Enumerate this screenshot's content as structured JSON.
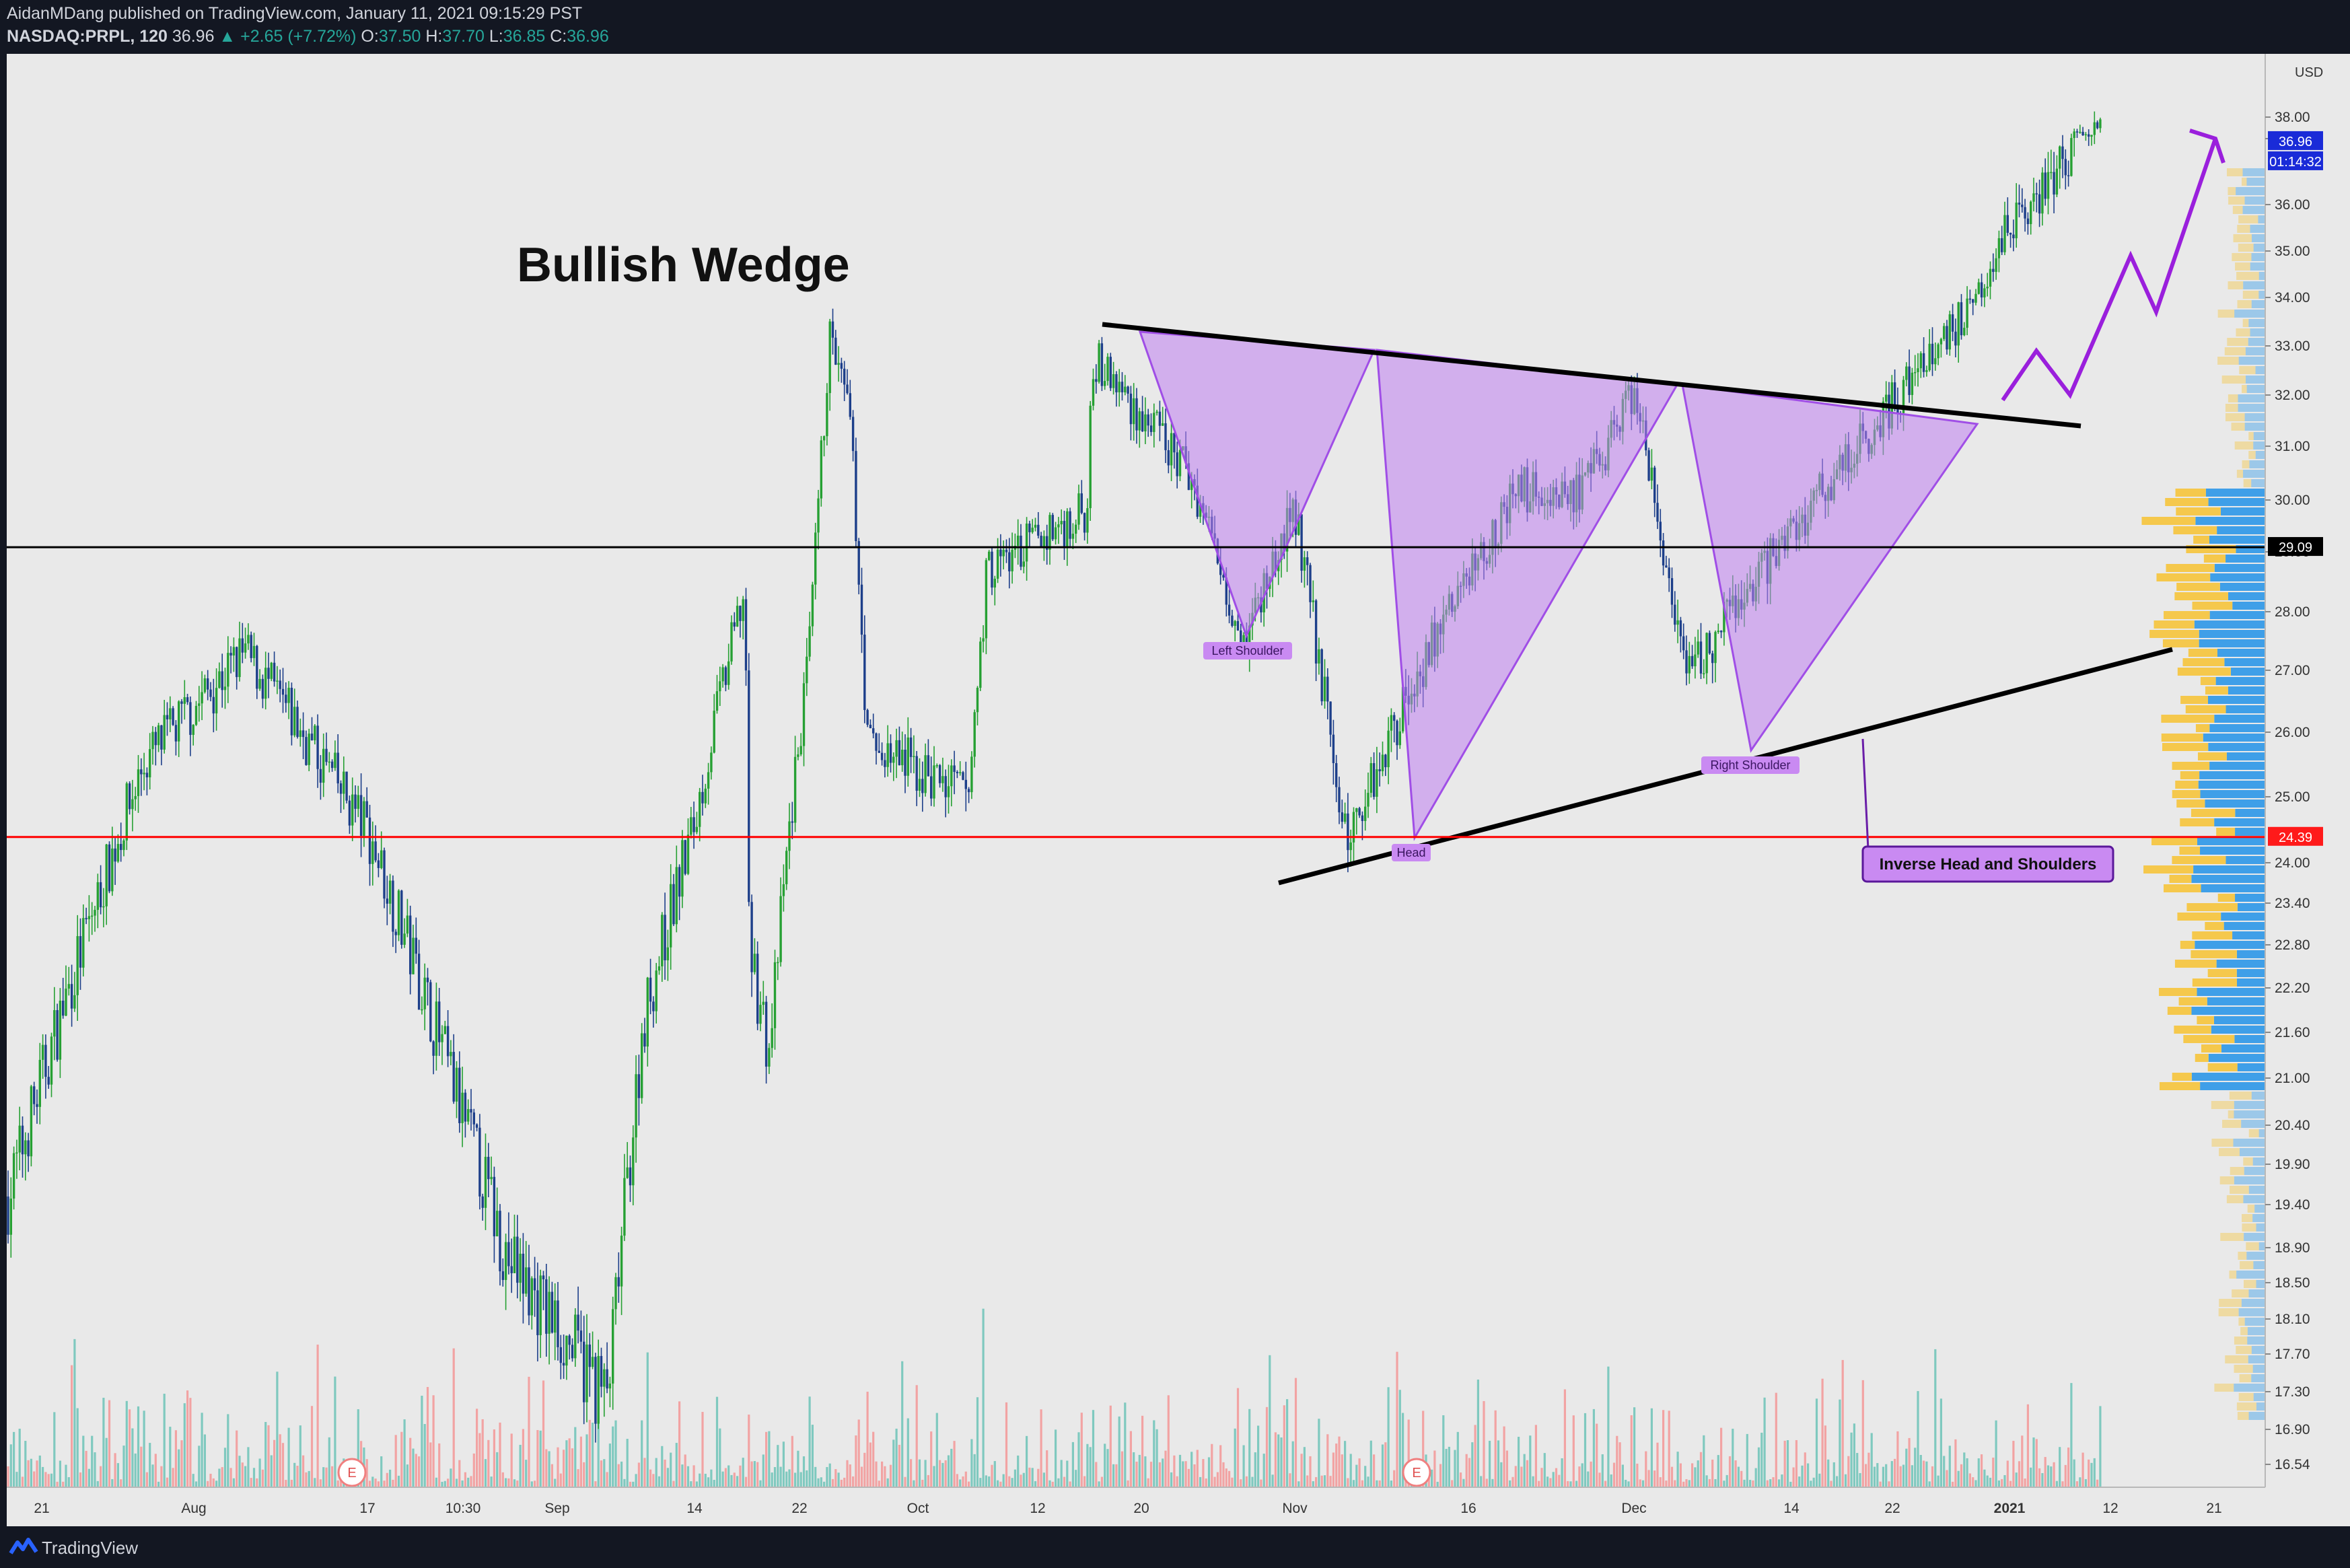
{
  "header": {
    "publisher_line": "AidanMDang published on TradingView.com, January 11, 2021 09:15:29 PST",
    "symbol": "NASDAQ:PRPL, 120",
    "last": "36.96",
    "change": "+2.65 (+7.72%)",
    "o_label": "O:",
    "o_value": "37.50",
    "h_label": "H:",
    "h_value": "37.70",
    "l_label": "L:",
    "l_value": "36.85",
    "c_label": "C:",
    "c_value": "36.96"
  },
  "footer": {
    "brand": "TradingView"
  },
  "colors": {
    "plot_bg": "#e9e9e9",
    "up_candle": "#26a033",
    "down_candle": "#1d3f8a",
    "pattern_fill": "#c080f0",
    "arrow": "#9a1fdc",
    "support_line": "#ff0000",
    "volume_up": "#7fc9bf",
    "volume_down": "#f2a3a3",
    "vp_blue": "#3f9fe8",
    "vp_yellow": "#f5c84c"
  },
  "chart_data": {
    "type": "candlestick",
    "title": "Bullish Wedge",
    "currency_label": "USD",
    "x_ticks": [
      "21",
      "Aug",
      "17",
      "10:30",
      "Sep",
      "14",
      "22",
      "Oct",
      "12",
      "20",
      "Nov",
      "16",
      "Dec",
      "14",
      "22",
      "2021",
      "12",
      "21"
    ],
    "y_ticks": [
      "38.00",
      "37.00",
      "36.00",
      "35.00",
      "34.00",
      "33.00",
      "32.00",
      "31.00",
      "30.00",
      "29.00",
      "28.00",
      "27.00",
      "26.00",
      "25.00",
      "24.00",
      "23.40",
      "22.80",
      "22.20",
      "21.60",
      "21.00",
      "20.40",
      "19.90",
      "19.40",
      "18.90",
      "18.50",
      "18.10",
      "17.70",
      "17.30",
      "16.90",
      "16.54"
    ],
    "price_badges": {
      "last_price": "36.96",
      "countdown": "01:14:32",
      "resistance": "29.09",
      "support": "24.39"
    },
    "horizontal_lines": [
      29.09,
      24.39
    ],
    "annotations": {
      "left_shoulder": "Left Shoulder",
      "head": "Head",
      "right_shoulder": "Right Shoulder",
      "pattern_name": "Inverse Head and Shoulders",
      "earnings_marker": "E"
    },
    "price_path": [
      [
        "21",
        19.5
      ],
      [
        "Aug",
        25.5
      ],
      [
        "Aug",
        27.3
      ],
      [
        "17",
        24.5
      ],
      [
        "10:30",
        20.5
      ],
      [
        "Sep",
        18.8
      ],
      [
        "Sep",
        17.2
      ],
      [
        "14",
        21.8
      ],
      [
        "14",
        24.6
      ],
      [
        "22",
        22.8
      ],
      [
        "22",
        21.3
      ],
      [
        "22",
        24.5
      ],
      [
        "Oct",
        25.8
      ],
      [
        "Oct",
        25.0
      ],
      [
        "12",
        28.7
      ],
      [
        "12",
        29.8
      ],
      [
        "20",
        32.8
      ],
      [
        "20",
        30.4
      ],
      [
        "Nov",
        27.5
      ],
      [
        "Nov",
        29.8
      ],
      [
        "Nov",
        24.3
      ],
      [
        "16",
        27.0
      ],
      [
        "16",
        30.2
      ],
      [
        "Dec",
        30.1
      ],
      [
        "Dec",
        32.1
      ],
      [
        "Dec",
        26.8
      ],
      [
        "14",
        28.4
      ],
      [
        "22",
        27.3
      ],
      [
        "22",
        33.2
      ],
      [
        "22",
        31.5
      ],
      [
        "2021",
        33.5
      ],
      [
        "2021",
        35.6
      ],
      [
        "2021",
        37.5
      ]
    ],
    "projection": [
      31.9,
      32.9,
      32.0,
      34.9,
      33.7,
      37.0
    ]
  }
}
